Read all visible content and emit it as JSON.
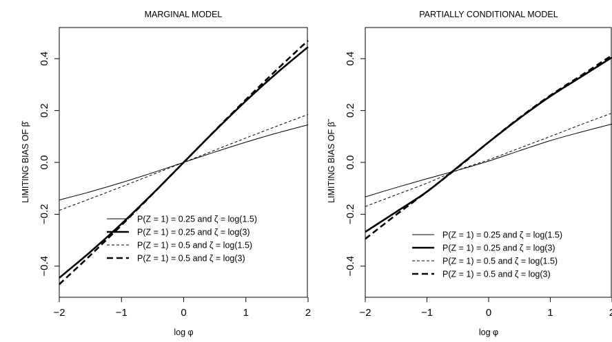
{
  "chart_data": [
    {
      "type": "line",
      "title": "MARGINAL MODEL",
      "xlabel": "log φ",
      "ylabel": "LIMITING BIAS OF β̂",
      "xlim": [
        -2,
        2
      ],
      "ylim": [
        -0.52,
        0.52
      ],
      "x_ticks": [
        -2,
        -1,
        0,
        1,
        2
      ],
      "y_ticks": [
        -0.4,
        -0.2,
        0.0,
        0.2,
        0.4
      ],
      "x_tick_labels": [
        "−2",
        "−1",
        "0",
        "1",
        "2"
      ],
      "y_tick_labels": [
        "−0.4",
        "−0.2",
        "0.0",
        "0.2",
        "0.4"
      ],
      "grid": false,
      "legend_position": "bottom-right",
      "series": [
        {
          "name": "P(Z = 1) = 0.25 and ζ = log(1.5)",
          "style": "thin-solid",
          "x": [
            -2,
            -1.5,
            -1,
            -0.5,
            0,
            0.5,
            1,
            1.5,
            2
          ],
          "y": [
            -0.145,
            -0.113,
            -0.078,
            -0.04,
            0.0,
            0.04,
            0.078,
            0.113,
            0.145
          ]
        },
        {
          "name": "P(Z = 1) = 0.25 and ζ = log(3)",
          "style": "thick-solid",
          "x": [
            -2,
            -1.5,
            -1,
            -0.5,
            0,
            0.5,
            1,
            1.5,
            2
          ],
          "y": [
            -0.445,
            -0.345,
            -0.237,
            -0.121,
            0.0,
            0.121,
            0.237,
            0.345,
            0.445
          ]
        },
        {
          "name": "P(Z = 1) = 0.5 and ζ = log(1.5)",
          "style": "thin-dashed",
          "x": [
            -2,
            -1.5,
            -1,
            -0.5,
            0,
            0.5,
            1,
            1.5,
            2
          ],
          "y": [
            -0.185,
            -0.14,
            -0.094,
            -0.047,
            0.0,
            0.047,
            0.094,
            0.14,
            0.185
          ]
        },
        {
          "name": "P(Z = 1) = 0.5 and ζ = log(3)",
          "style": "thick-dashed",
          "x": [
            -2,
            -1.5,
            -1,
            -0.5,
            0,
            0.5,
            1,
            1.5,
            2
          ],
          "y": [
            -0.47,
            -0.358,
            -0.242,
            -0.122,
            0.0,
            0.122,
            0.242,
            0.358,
            0.47
          ]
        }
      ]
    },
    {
      "type": "line",
      "title": "PARTIALLY CONDITIONAL MODEL",
      "xlabel": "log φ",
      "ylabel": "LIMITING BIAS OF β̃",
      "xlim": [
        -2,
        2
      ],
      "ylim": [
        -0.52,
        0.52
      ],
      "x_ticks": [
        -2,
        -1,
        0,
        1,
        2
      ],
      "y_ticks": [
        -0.4,
        -0.2,
        0.0,
        0.2,
        0.4
      ],
      "x_tick_labels": [
        "−2",
        "−1",
        "0",
        "1",
        "2"
      ],
      "y_tick_labels": [
        "−0.4",
        "−0.2",
        "0.0",
        "0.2",
        "0.4"
      ],
      "grid": false,
      "legend_position": "bottom-right",
      "series": [
        {
          "name": "P(Z = 1) = 0.25 and ζ = log(1.5)",
          "style": "thin-solid",
          "x": [
            -2,
            -1.5,
            -1,
            -0.5,
            0,
            0.5,
            1,
            1.5,
            2
          ],
          "y": [
            -0.133,
            -0.097,
            -0.063,
            -0.03,
            0.005,
            0.045,
            0.084,
            0.117,
            0.148
          ]
        },
        {
          "name": "P(Z = 1) = 0.25 and ζ = log(3)",
          "style": "thick-solid",
          "x": [
            -2,
            -1.5,
            -1,
            -0.5,
            0,
            0.5,
            1,
            1.5,
            2
          ],
          "y": [
            -0.268,
            -0.191,
            -0.113,
            -0.018,
            0.078,
            0.17,
            0.255,
            0.33,
            0.405
          ]
        },
        {
          "name": "P(Z = 1) = 0.5 and ζ = log(1.5)",
          "style": "thin-dashed",
          "x": [
            -2,
            -1.5,
            -1,
            -0.5,
            0,
            0.5,
            1,
            1.5,
            2
          ],
          "y": [
            -0.17,
            -0.125,
            -0.08,
            -0.03,
            0.01,
            0.055,
            0.1,
            0.146,
            0.19
          ]
        },
        {
          "name": "P(Z = 1) = 0.5 and ζ = log(3)",
          "style": "thick-dashed",
          "x": [
            -2,
            -1.5,
            -1,
            -0.5,
            0,
            0.5,
            1,
            1.5,
            2
          ],
          "y": [
            -0.295,
            -0.202,
            -0.113,
            -0.02,
            0.078,
            0.172,
            0.258,
            0.335,
            0.413
          ]
        }
      ]
    }
  ]
}
